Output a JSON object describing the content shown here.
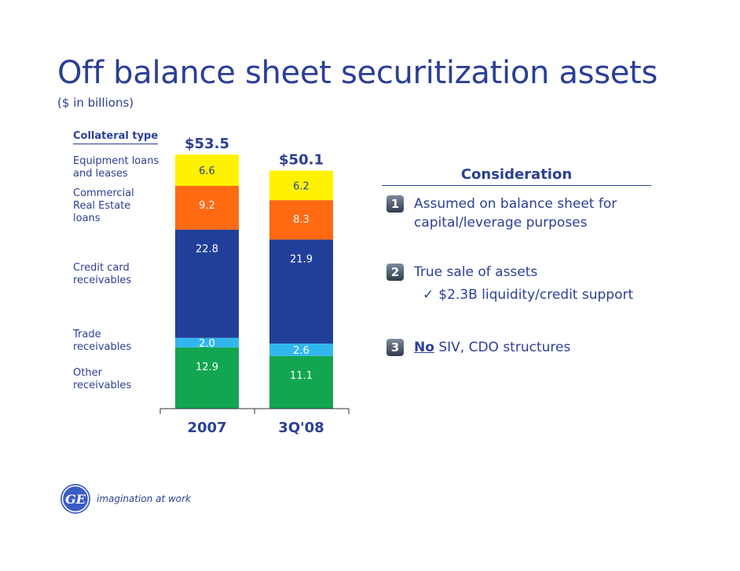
{
  "title": "Off balance sheet securitization assets",
  "subtitle": "($ in billions)",
  "collateral_header": "Collateral type",
  "colors": {
    "equipment": "#fff200",
    "cre": "#ff6a13",
    "credit_card": "#213f99",
    "trade": "#32b6ee",
    "other": "#12a650",
    "brand": "#2b3f96"
  },
  "chart_data": {
    "type": "bar",
    "stacked": true,
    "categories": [
      "2007",
      "3Q'08"
    ],
    "totals": [
      "$53.5",
      "$50.1"
    ],
    "series": [
      {
        "name": "Other receivables",
        "key": "other",
        "values": [
          12.9,
          11.1
        ]
      },
      {
        "name": "Trade receivables",
        "key": "trade",
        "values": [
          2.0,
          2.6
        ]
      },
      {
        "name": "Credit card receivables",
        "key": "credit_card",
        "values": [
          22.8,
          21.9
        ]
      },
      {
        "name": "Commercial Real Estate loans",
        "key": "cre",
        "values": [
          9.2,
          8.3
        ]
      },
      {
        "name": "Equipment loans and leases",
        "key": "equipment",
        "values": [
          6.6,
          6.2
        ]
      }
    ],
    "ylim": [
      0,
      53.5
    ]
  },
  "category_labels": {
    "equipment": "Equipment loans\nand leases",
    "cre": "Commercial\nReal Estate\nloans",
    "credit_card": "Credit card\nreceivables",
    "trade": "Trade\nreceivables",
    "other": "Other\nreceivables"
  },
  "consideration": {
    "header": "Consideration",
    "points": [
      {
        "num": "1",
        "text": "Assumed on balance sheet for capital/leverage purposes"
      },
      {
        "num": "2",
        "text": "True sale of assets",
        "sub": "$2.3B liquidity/credit support"
      },
      {
        "num": "3",
        "emph": "No",
        "text": " SIV, CDO structures"
      }
    ]
  },
  "logo": {
    "mark": "GE",
    "tagline": "imagination at work"
  }
}
